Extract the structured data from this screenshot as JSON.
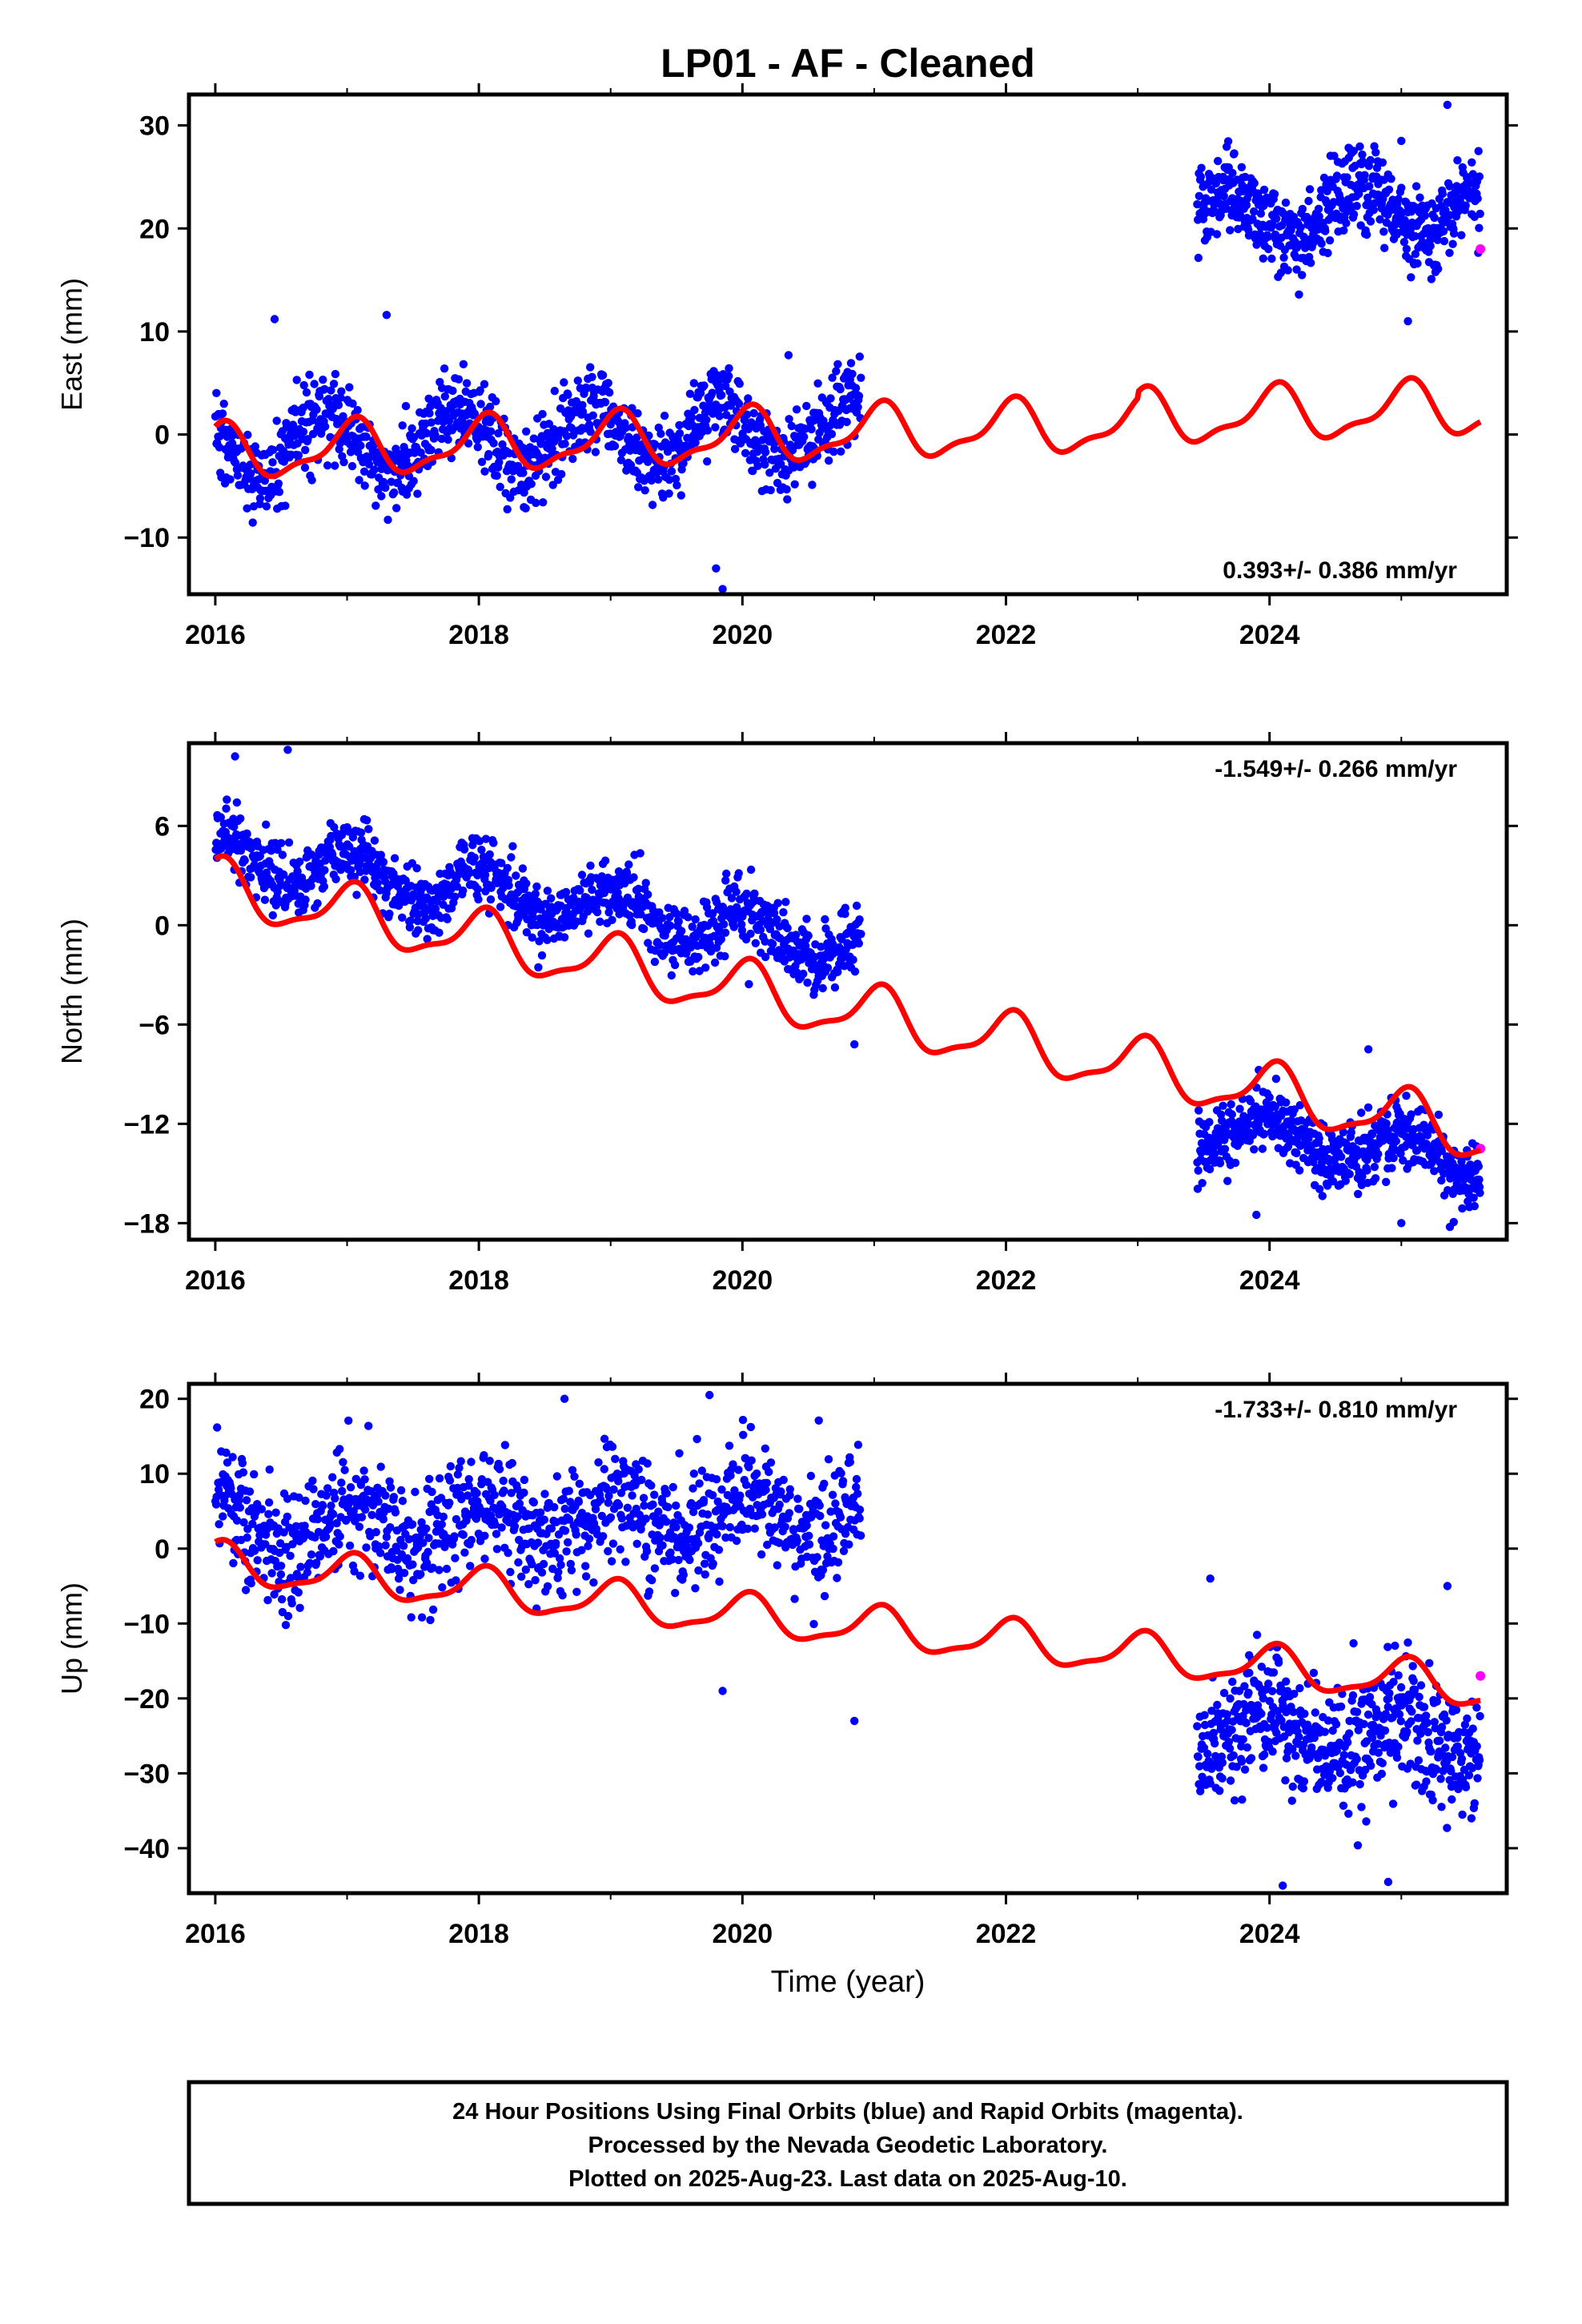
{
  "title": "LP01  - AF - Cleaned",
  "xlabel": "Time (year)",
  "colors": {
    "final": "#0000ff",
    "rapid": "#ff00ff",
    "model": "#ff0000",
    "frame": "#000000"
  },
  "footer": {
    "line1": "24 Hour Positions Using Final Orbits (blue) and Rapid Orbits (magenta).",
    "line2": "Processed by the Nevada Geodetic Laboratory.",
    "line3": "Plotted on 2025-Aug-23. Last data on 2025-Aug-10."
  },
  "chart_data": [
    {
      "type": "scatter",
      "component": "east",
      "ylabel": "East (mm)",
      "rate_label": "0.393+/- 0.386 mm/yr",
      "rate_position": "bottom-right",
      "xlim": [
        2015.8,
        2025.8
      ],
      "ylim": [
        -15.5,
        33
      ],
      "xticks": [
        "2016",
        "2018",
        "2020",
        "2022",
        "2024"
      ],
      "yticks": [
        "30",
        "20",
        "10",
        "0",
        "−10"
      ],
      "segments": [
        {
          "from": 2016.0,
          "to": 2020.9,
          "center": -1.2,
          "trend": 0.393,
          "annual_amp": 3.0,
          "annual_phase": 2.6,
          "scatter": 2.4,
          "count": 1100
        },
        {
          "from": 2023.45,
          "to": 2025.6,
          "center": 21.0,
          "trend": 0.393,
          "annual_amp": 2.5,
          "annual_phase": 3.6,
          "scatter": 2.3,
          "count": 560
        }
      ],
      "outliers": [
        [
          2016.45,
          11.2
        ],
        [
          2017.3,
          11.6
        ],
        [
          2019.85,
          -15.0
        ],
        [
          2019.8,
          -13.0
        ],
        [
          2020.35,
          7.7
        ],
        [
          2025.35,
          32.0
        ],
        [
          2025.05,
          11.0
        ],
        [
          2025.0,
          28.5
        ]
      ],
      "rapid_points": [
        [
          2025.6,
          18.0
        ]
      ],
      "model": {
        "from": 2016.0,
        "to": 2025.6,
        "start": 0.5,
        "trend": 0.393,
        "annual_amp": 2.4,
        "annual_phase": 1.35,
        "semi_amp": 0.9,
        "semi_phase": 0.3,
        "offset_after_2023": 0.6
      }
    },
    {
      "type": "scatter",
      "component": "north",
      "ylabel": "North (mm)",
      "rate_label": "-1.549+/- 0.266 mm/yr",
      "rate_position": "top-right",
      "xlim": [
        2015.8,
        2025.8
      ],
      "ylim": [
        -19,
        11
      ],
      "xticks": [
        "2016",
        "2018",
        "2020",
        "2022",
        "2024"
      ],
      "yticks": [
        "6",
        "0",
        "−6",
        "−12",
        "−18"
      ],
      "segments": [
        {
          "from": 2016.0,
          "to": 2020.9,
          "center": 4.5,
          "trend": -1.2,
          "annual_amp": 1.3,
          "annual_phase": 1.4,
          "scatter": 1.2,
          "count": 1100
        },
        {
          "from": 2023.45,
          "to": 2025.6,
          "center": -12.3,
          "trend": -0.9,
          "annual_amp": 1.1,
          "annual_phase": 1.6,
          "scatter": 1.2,
          "count": 560
        }
      ],
      "outliers": [
        [
          2016.15,
          10.2
        ],
        [
          2016.55,
          10.8
        ],
        [
          2020.85,
          -7.2
        ],
        [
          2023.9,
          -17.5
        ],
        [
          2025.0,
          -18.0
        ],
        [
          2024.75,
          -7.5
        ]
      ],
      "rapid_points": [
        [
          2025.6,
          -13.5
        ]
      ],
      "model": {
        "from": 2016.0,
        "to": 2025.6,
        "start": 3.8,
        "trend": -1.549,
        "annual_amp": 1.6,
        "annual_phase": 1.35,
        "semi_amp": 0.5,
        "semi_phase": 0.4,
        "offset_after_2023": 0.0
      }
    },
    {
      "type": "scatter",
      "component": "up",
      "ylabel": "Up (mm)",
      "rate_label": "-1.733+/- 0.810 mm/yr",
      "rate_position": "top-right",
      "xlim": [
        2015.8,
        2025.8
      ],
      "ylim": [
        -46,
        22
      ],
      "xticks": [
        "2016",
        "2018",
        "2020",
        "2022",
        "2024"
      ],
      "yticks": [
        "20",
        "10",
        "0",
        "−10",
        "−20",
        "−30",
        "−40"
      ],
      "segments": [
        {
          "from": 2016.0,
          "to": 2020.9,
          "center": 2.5,
          "trend": 0.5,
          "annual_amp": 3.0,
          "annual_phase": 1.4,
          "scatter": 4.8,
          "count": 1100
        },
        {
          "from": 2023.45,
          "to": 2025.6,
          "center": -24.0,
          "trend": -0.8,
          "annual_amp": 3.0,
          "annual_phase": 1.8,
          "scatter": 4.8,
          "count": 560
        }
      ],
      "outliers": [
        [
          2020.85,
          -23.0
        ],
        [
          2019.85,
          -19.0
        ],
        [
          2019.75,
          20.5
        ],
        [
          2018.65,
          20.0
        ],
        [
          2024.1,
          -45.0
        ],
        [
          2024.9,
          -44.5
        ],
        [
          2025.35,
          -5.0
        ],
        [
          2023.55,
          -4.0
        ]
      ],
      "rapid_points": [
        [
          2025.6,
          -17.0
        ]
      ],
      "model": {
        "from": 2016.0,
        "to": 2025.6,
        "start": 0.5,
        "trend": -1.733,
        "annual_amp": 2.6,
        "annual_phase": 1.35,
        "semi_amp": 0.8,
        "semi_phase": 0.5,
        "offset_after_2023": 0.0
      }
    }
  ]
}
